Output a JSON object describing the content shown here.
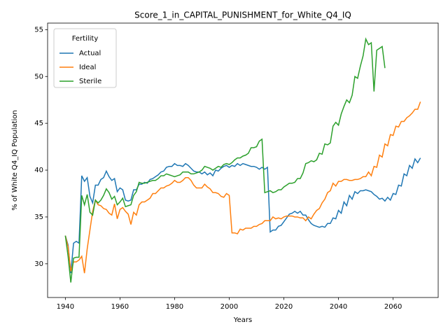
{
  "chart_data": {
    "type": "line",
    "title": "Score_1_in_CAPITAL_PUNISHMENT_for_White_Q4_IQ",
    "x_label": "Years",
    "y_label": "% of White Q4_IQ Population",
    "legend_title": "Fertility",
    "legend_position": "upper left",
    "xlim": [
      1933.5,
      2076.5
    ],
    "ylim": [
      26.4,
      55.7
    ],
    "xticks": [
      1940,
      1960,
      1980,
      2000,
      2020,
      2040,
      2060
    ],
    "yticks": [
      30,
      35,
      40,
      45,
      50,
      55
    ],
    "x": [
      1940,
      1941,
      1942,
      1943,
      1944,
      1945,
      1946,
      1947,
      1948,
      1949,
      1950,
      1951,
      1952,
      1953,
      1954,
      1955,
      1956,
      1957,
      1958,
      1959,
      1960,
      1961,
      1962,
      1963,
      1964,
      1965,
      1966,
      1967,
      1968,
      1969,
      1970,
      1971,
      1972,
      1973,
      1974,
      1975,
      1976,
      1977,
      1978,
      1979,
      1980,
      1981,
      1982,
      1983,
      1984,
      1985,
      1986,
      1987,
      1988,
      1989,
      1990,
      1991,
      1992,
      1993,
      1994,
      1995,
      1996,
      1997,
      1998,
      1999,
      2000,
      2001,
      2002,
      2003,
      2004,
      2005,
      2006,
      2007,
      2008,
      2009,
      2010,
      2011,
      2012,
      2013,
      2014,
      2015,
      2016,
      2017,
      2018,
      2019,
      2020,
      2021,
      2022,
      2023,
      2024,
      2025,
      2026,
      2027,
      2028,
      2029,
      2030,
      2031,
      2032,
      2033,
      2034,
      2035,
      2036,
      2037,
      2038,
      2039,
      2040,
      2041,
      2042,
      2043,
      2044,
      2045,
      2046,
      2047,
      2048,
      2049,
      2050,
      2051,
      2052,
      2053,
      2054,
      2055,
      2056,
      2057,
      2058,
      2059,
      2060,
      2061,
      2062,
      2063,
      2064,
      2065,
      2066,
      2067,
      2068,
      2069,
      2070
    ],
    "series": [
      {
        "name": "Actual",
        "color": "#1f77b4",
        "values": [
          33.0,
          32.0,
          29.0,
          32.2,
          32.4,
          32.2,
          39.4,
          38.8,
          39.2,
          37.2,
          36.5,
          38.4,
          38.4,
          39.0,
          39.2,
          39.9,
          39.3,
          38.9,
          39.1,
          37.7,
          38.1,
          37.9,
          36.8,
          36.7,
          36.8,
          37.9,
          37.9,
          38.5,
          38.5,
          38.7,
          38.6,
          39.0,
          39.1,
          39.3,
          39.5,
          39.8,
          39.9,
          40.3,
          40.4,
          40.4,
          40.7,
          40.5,
          40.5,
          40.4,
          40.7,
          40.5,
          40.2,
          39.9,
          39.8,
          39.8,
          39.6,
          39.8,
          39.5,
          39.7,
          39.4,
          40.0,
          39.9,
          40.2,
          40.4,
          40.5,
          40.3,
          40.5,
          40.4,
          40.7,
          40.5,
          40.7,
          40.6,
          40.5,
          40.4,
          40.4,
          40.3,
          40.1,
          40.3,
          40.1,
          40.3,
          33.4,
          33.6,
          33.6,
          34.0,
          34.1,
          34.5,
          34.9,
          35.3,
          35.4,
          35.6,
          35.4,
          35.6,
          35.2,
          35.2,
          34.7,
          34.3,
          34.1,
          34.0,
          33.9,
          34.0,
          33.9,
          34.3,
          34.3,
          34.9,
          34.8,
          35.7,
          35.4,
          36.6,
          36.2,
          37.3,
          36.9,
          37.7,
          37.5,
          37.8,
          37.8,
          37.9,
          37.8,
          37.7,
          37.4,
          37.2,
          36.9,
          37.0,
          36.7,
          37.1,
          36.8,
          37.5,
          37.4,
          38.4,
          38.3,
          39.6,
          39.4,
          40.5,
          40.2,
          41.2,
          40.8,
          41.3
        ]
      },
      {
        "name": "Ideal",
        "color": "#ff7f0e",
        "values": [
          33.0,
          31.8,
          29.2,
          30.2,
          30.2,
          30.4,
          30.8,
          29.0,
          31.6,
          33.6,
          35.6,
          36.8,
          36.3,
          36.2,
          35.9,
          35.8,
          35.4,
          35.2,
          36.4,
          34.8,
          35.8,
          36.0,
          35.6,
          35.3,
          34.2,
          35.5,
          35.2,
          36.3,
          36.6,
          36.6,
          36.8,
          37.0,
          37.5,
          37.5,
          37.8,
          38.1,
          38.1,
          38.3,
          38.4,
          38.6,
          38.9,
          38.7,
          38.7,
          38.9,
          39.2,
          39.2,
          38.9,
          38.4,
          38.1,
          38.1,
          38.1,
          38.5,
          38.2,
          38.0,
          37.6,
          37.6,
          37.5,
          37.2,
          37.1,
          37.5,
          37.3,
          33.3,
          33.3,
          33.2,
          33.7,
          33.6,
          33.8,
          33.8,
          33.8,
          34.0,
          34.0,
          34.2,
          34.3,
          34.6,
          34.6,
          34.6,
          35.0,
          34.8,
          34.9,
          34.8,
          35.0,
          35.1,
          35.1,
          35.1,
          35.0,
          35.0,
          34.9,
          34.9,
          34.6,
          35.0,
          34.8,
          35.3,
          35.7,
          35.9,
          36.5,
          36.9,
          37.6,
          37.8,
          38.6,
          38.3,
          38.8,
          38.8,
          39.0,
          39.0,
          38.9,
          38.9,
          39.0,
          39.0,
          39.1,
          39.3,
          39.3,
          39.8,
          39.4,
          40.4,
          40.3,
          41.6,
          41.4,
          42.8,
          42.6,
          43.8,
          43.7,
          44.7,
          44.6,
          45.2,
          45.2,
          45.6,
          45.8,
          46.1,
          46.5,
          46.5,
          47.3
        ]
      },
      {
        "name": "Sterile",
        "color": "#2ca02c",
        "values": [
          33.0,
          30.8,
          28.0,
          30.6,
          30.7,
          30.7,
          37.3,
          36.3,
          37.4,
          35.5,
          35.2,
          36.8,
          36.5,
          36.8,
          37.3,
          38.0,
          37.6,
          36.9,
          37.2,
          36.3,
          36.6,
          37.0,
          36.1,
          36.2,
          36.3,
          37.3,
          37.7,
          38.7,
          38.6,
          38.6,
          38.7,
          38.8,
          38.9,
          38.9,
          39.1,
          39.4,
          39.4,
          39.6,
          39.5,
          39.4,
          39.3,
          39.4,
          39.5,
          39.8,
          39.8,
          39.8,
          39.6,
          39.6,
          39.7,
          39.8,
          40.0,
          40.4,
          40.3,
          40.2,
          40.0,
          40.2,
          40.4,
          40.3,
          40.6,
          40.7,
          40.6,
          40.8,
          41.1,
          41.3,
          41.3,
          41.5,
          41.6,
          41.8,
          42.4,
          42.4,
          42.5,
          43.1,
          43.3,
          37.6,
          37.7,
          37.8,
          37.6,
          37.7,
          37.9,
          37.9,
          38.2,
          38.4,
          38.6,
          38.6,
          38.7,
          39.1,
          39.1,
          39.7,
          40.7,
          40.8,
          41.0,
          40.9,
          41.1,
          41.8,
          41.7,
          42.8,
          42.7,
          42.9,
          44.7,
          45.1,
          44.8,
          46.0,
          46.8,
          47.5,
          47.2,
          48.0,
          50.0,
          49.8,
          51.1,
          52.2,
          54.0,
          53.4,
          53.6,
          48.4,
          52.8,
          53.0,
          53.2,
          50.9,
          null,
          null,
          null,
          null,
          null,
          null,
          null,
          null,
          null,
          null,
          null,
          null,
          null
        ]
      }
    ]
  }
}
